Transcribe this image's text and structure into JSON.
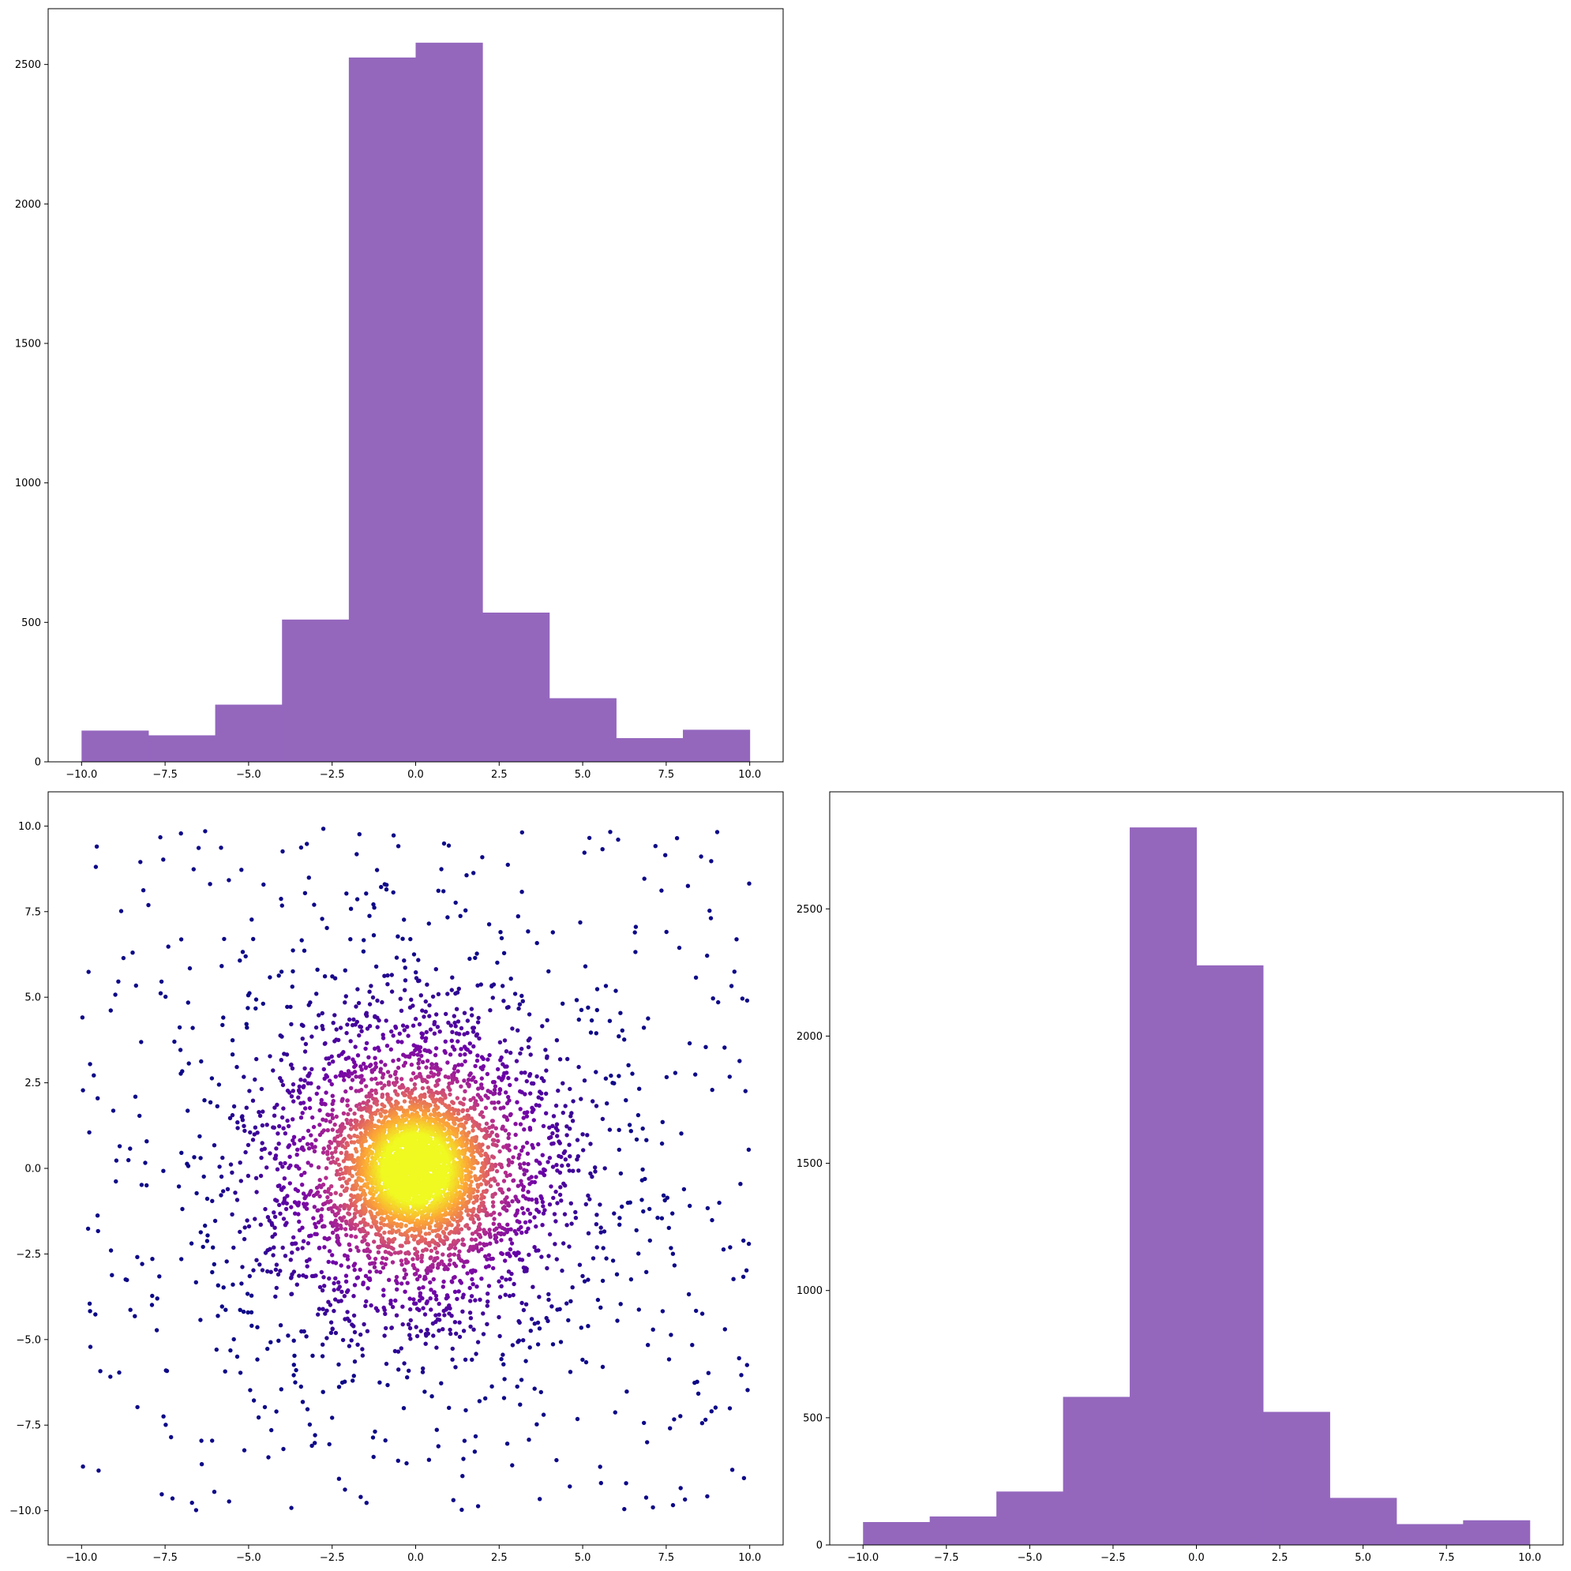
{
  "chart_data": [
    {
      "id": "hist-x",
      "type": "bar",
      "subtype": "histogram",
      "bin_edges": [
        -10,
        -8,
        -6,
        -4,
        -2,
        0,
        2,
        4,
        6,
        8,
        10
      ],
      "values": [
        112,
        95,
        205,
        510,
        2525,
        2578,
        535,
        228,
        85,
        115
      ],
      "xlim": [
        -11,
        11
      ],
      "ylim": [
        0,
        2700
      ],
      "xticks": [
        -10.0,
        -7.5,
        -5.0,
        -2.5,
        0.0,
        2.5,
        5.0,
        7.5,
        10.0
      ],
      "yticks": [
        0,
        500,
        1000,
        1500,
        2000,
        2500
      ],
      "bar_color": "#9467bd",
      "grid": false
    },
    {
      "id": "scatter-xy",
      "type": "scatter",
      "description_colormap": "plasma",
      "color_by": "density",
      "point_count_approx": 6000,
      "xlim": [
        -11,
        11
      ],
      "ylim": [
        -11,
        11
      ],
      "xticks": [
        -10.0,
        -7.5,
        -5.0,
        -2.5,
        0.0,
        2.5,
        5.0,
        7.5,
        10.0
      ],
      "yticks": [
        -10.0,
        -7.5,
        -5.0,
        -2.5,
        0.0,
        2.5,
        5.0,
        7.5,
        10.0
      ],
      "colors": [
        "#0d0887",
        "#6a00a8",
        "#b12a90",
        "#e16462",
        "#fca636",
        "#f0f921"
      ],
      "grid": false
    },
    {
      "id": "hist-y",
      "type": "bar",
      "subtype": "histogram",
      "bin_edges": [
        -10,
        -8,
        -6,
        -4,
        -2,
        0,
        2,
        4,
        6,
        8,
        10
      ],
      "values": [
        90,
        112,
        210,
        582,
        2820,
        2278,
        523,
        185,
        82,
        97
      ],
      "xlim": [
        -11,
        11
      ],
      "ylim": [
        0,
        2960
      ],
      "xticks": [
        -10.0,
        -7.5,
        -5.0,
        -2.5,
        0.0,
        2.5,
        5.0,
        7.5,
        10.0
      ],
      "yticks": [
        0,
        500,
        1000,
        1500,
        2000,
        2500
      ],
      "bar_color": "#9467bd",
      "grid": false
    }
  ]
}
